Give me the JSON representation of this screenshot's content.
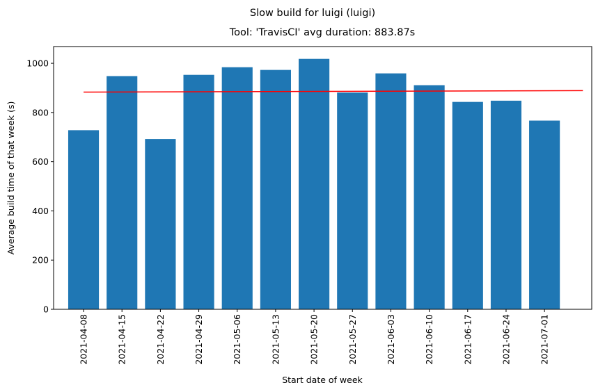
{
  "chart_data": {
    "type": "bar",
    "suptitle": "Slow build for luigi (luigi)",
    "title": "Tool: 'TravisCI' avg duration: 883.87s",
    "xlabel": "Start date of week",
    "ylabel": "Average build time of that week (s)",
    "categories": [
      "2021-04-08",
      "2021-04-15",
      "2021-04-22",
      "2021-04-29",
      "2021-05-06",
      "2021-05-13",
      "2021-05-20",
      "2021-05-27",
      "2021-06-03",
      "2021-06-10",
      "2021-06-17",
      "2021-06-24",
      "2021-07-01"
    ],
    "values": [
      728,
      948,
      692,
      953,
      984,
      973,
      1018,
      881,
      959,
      911,
      843,
      848,
      767
    ],
    "ylim": [
      0,
      1068
    ],
    "yticks": [
      "0",
      "200",
      "400",
      "600",
      "800",
      "1000"
    ],
    "trend_line": {
      "color": "#ff0000",
      "start": 883,
      "end": 889
    },
    "bar_color": "#1f77b4",
    "grid": false,
    "legend": "none"
  }
}
